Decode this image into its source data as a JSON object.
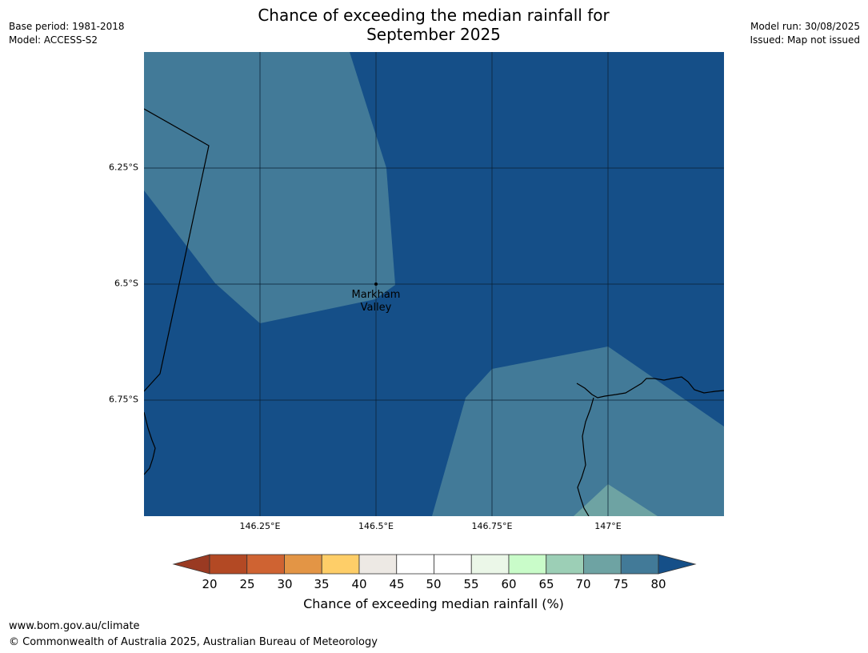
{
  "header": {
    "title_line1": "Chance of exceeding the median rainfall for",
    "title_line2": "September 2025",
    "base_period": "Base period: 1981-2018",
    "model": "Model: ACCESS-S2",
    "model_run": "Model run: 30/08/2025",
    "issued": "Issued: Map not issued"
  },
  "map": {
    "place_label_line1": "Markham",
    "place_label_line2": "Valley",
    "lat_labels": [
      "6.25°S",
      "6.5°S",
      "6.75°S"
    ],
    "lon_labels": [
      "146.25°E",
      "146.5°E",
      "146.75°E",
      "147°E"
    ],
    "region_colors": {
      "above_80": "#154f88",
      "75_80": "#427a98",
      "70_75": "#6ea3a3"
    }
  },
  "colorbar": {
    "label": "Chance of exceeding median rainfall (%)",
    "ticks": [
      "20",
      "25",
      "30",
      "35",
      "40",
      "45",
      "50",
      "55",
      "60",
      "65",
      "70",
      "75",
      "80"
    ],
    "colors": {
      "below_20": "#9a3a22",
      "20_25": "#b34924",
      "25_30": "#cf6332",
      "30_35": "#e39545",
      "35_40": "#fece68",
      "40_45": "#ede9e4",
      "45_50": "#ffffff",
      "50_55": "#ffffff",
      "55_60": "#ebf7e8",
      "60_65": "#c9fcc9",
      "65_70": "#9ccfb6",
      "70_75": "#6ea3a3",
      "75_80": "#427a98",
      "above_80": "#154f88"
    }
  },
  "footer": {
    "url": "www.bom.gov.au/climate",
    "copyright": "© Commonwealth of Australia 2025, Australian Bureau of Meteorology"
  }
}
